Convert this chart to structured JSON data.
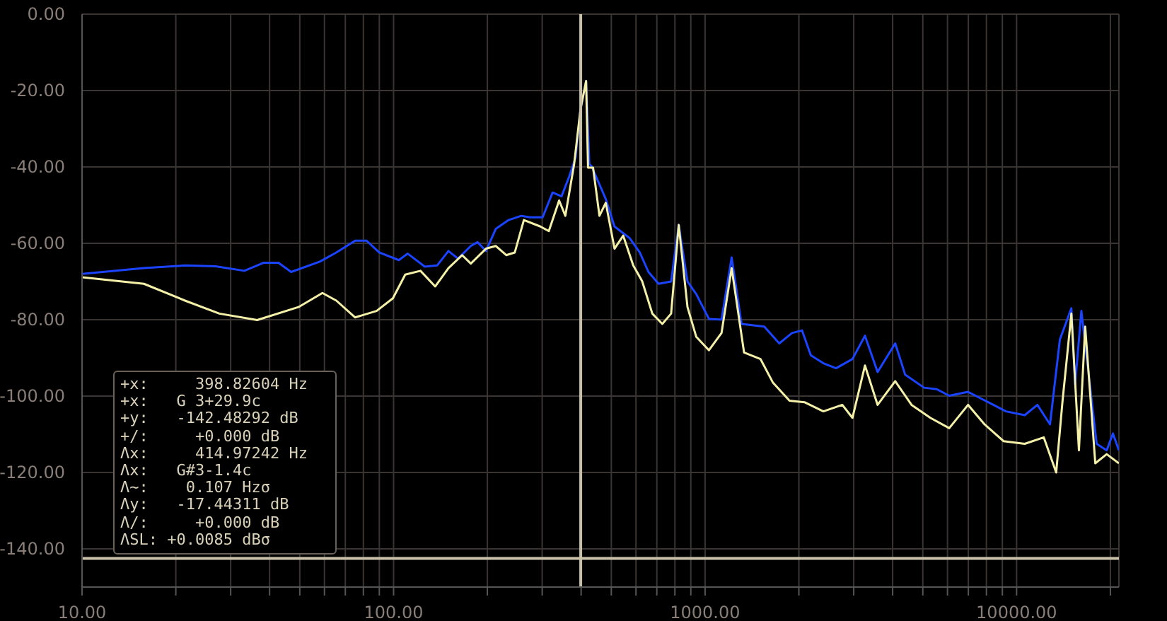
{
  "chart_data": {
    "type": "line",
    "log": "x",
    "grid": true,
    "xlim": [
      10,
      21300
    ],
    "xticks": [
      {
        "value": 10,
        "label": "10.00"
      },
      {
        "value": 20,
        "label": null
      },
      {
        "value": 30,
        "label": null
      },
      {
        "value": 40,
        "label": null
      },
      {
        "value": 50,
        "label": null
      },
      {
        "value": 60,
        "label": null
      },
      {
        "value": 70,
        "label": null
      },
      {
        "value": 80,
        "label": null
      },
      {
        "value": 90,
        "label": null
      },
      {
        "value": 100,
        "label": "100.00"
      },
      {
        "value": 200,
        "label": null
      },
      {
        "value": 300,
        "label": null
      },
      {
        "value": 400,
        "label": null
      },
      {
        "value": 500,
        "label": null
      },
      {
        "value": 600,
        "label": null
      },
      {
        "value": 700,
        "label": null
      },
      {
        "value": 800,
        "label": null
      },
      {
        "value": 900,
        "label": null
      },
      {
        "value": 1000,
        "label": "1000.00"
      },
      {
        "value": 2000,
        "label": null
      },
      {
        "value": 3000,
        "label": null
      },
      {
        "value": 4000,
        "label": null
      },
      {
        "value": 5000,
        "label": null
      },
      {
        "value": 6000,
        "label": null
      },
      {
        "value": 7000,
        "label": null
      },
      {
        "value": 8000,
        "label": null
      },
      {
        "value": 9000,
        "label": null
      },
      {
        "value": 10000,
        "label": "10000.00"
      },
      {
        "value": 20000,
        "label": null
      }
    ],
    "ylim": [
      -150,
      0
    ],
    "yticks": [
      {
        "value": 0,
        "label": "0.00"
      },
      {
        "value": -20,
        "label": "-20.00"
      },
      {
        "value": -40,
        "label": "-40.00"
      },
      {
        "value": -60,
        "label": "-60.00"
      },
      {
        "value": -80,
        "label": "-80.00"
      },
      {
        "value": -100,
        "label": "-100.00"
      },
      {
        "value": -120,
        "label": "-120.00"
      },
      {
        "value": -140,
        "label": "-140.00"
      }
    ],
    "series": [
      {
        "color": "#1a44ff",
        "x": [
          10,
          15.8,
          21.4,
          26.8,
          33.2,
          38.2,
          42.7,
          46.9,
          58,
          65.5,
          75.3,
          81.9,
          89.9,
          104,
          111,
          126,
          138,
          150,
          161,
          177,
          186,
          198,
          213,
          234,
          257,
          274,
          301,
          324,
          346,
          366,
          384,
          398,
          415,
          425,
          432,
          480,
          512,
          572,
          617,
          658,
          709,
          778,
          823,
          878,
          937,
          1029,
          1129,
          1217,
          1309,
          1549,
          1730,
          1901,
          2047,
          2184,
          2397,
          2633,
          2972,
          3260,
          3579,
          4077,
          4388,
          5047,
          5539,
          6077,
          6987,
          7670,
          8420,
          9247,
          10620,
          11660,
          12800,
          13770,
          14990,
          15410,
          16140,
          16910,
          18070,
          19460,
          20380,
          21300
        ],
        "values": [
          -68,
          -66.5,
          -65.8,
          -66,
          -67.2,
          -65.1,
          -65.1,
          -67.5,
          -64.8,
          -62.4,
          -59.3,
          -59.3,
          -62.4,
          -64.4,
          -62.7,
          -66.1,
          -65.8,
          -62,
          -64,
          -60.7,
          -59.7,
          -62,
          -56.2,
          -53.9,
          -52.8,
          -53.2,
          -53.2,
          -46.7,
          -47.7,
          -42.6,
          -37.5,
          -25,
          -17.5,
          -39.2,
          -39.8,
          -48.4,
          -55.6,
          -58.6,
          -62.4,
          -67.5,
          -70.6,
          -70,
          -55.2,
          -70,
          -73.3,
          -79.8,
          -80,
          -63.7,
          -81.1,
          -81.8,
          -86.2,
          -83.5,
          -82.8,
          -89.3,
          -91.4,
          -92.7,
          -90.3,
          -84.2,
          -93.7,
          -86.2,
          -94.4,
          -97.8,
          -98.2,
          -99.9,
          -98.9,
          -100.6,
          -102.3,
          -104,
          -105,
          -102.3,
          -107.4,
          -85.2,
          -77,
          -97,
          -77.7,
          -92,
          -112.5,
          -114.2,
          -109.8,
          -114.2
        ]
      },
      {
        "color": "#f4f0a8",
        "x": [
          10,
          15.8,
          21.4,
          27.6,
          36.5,
          49.5,
          59.1,
          65.5,
          75.3,
          88.2,
          99.5,
          109,
          122,
          136,
          150,
          166,
          177,
          198,
          213,
          230,
          245,
          262,
          296,
          315,
          340,
          356,
          380,
          398,
          415,
          421,
          437,
          458,
          480,
          512,
          546,
          588,
          628,
          677,
          729,
          778,
          823,
          878,
          937,
          1029,
          1129,
          1217,
          1334,
          1506,
          1652,
          1866,
          2085,
          2397,
          2757,
          2972,
          3260,
          3579,
          4077,
          4600,
          5286,
          6077,
          6987,
          7890,
          9074,
          10620,
          12220,
          13400,
          14030,
          14990,
          15850,
          16600,
          17890,
          19460,
          21300
        ],
        "values": [
          -68.9,
          -70.6,
          -75,
          -78.4,
          -80.1,
          -76.7,
          -73,
          -75,
          -79.4,
          -77.7,
          -74.4,
          -68.2,
          -67.2,
          -71.3,
          -66.5,
          -63.1,
          -65.3,
          -61.4,
          -60.7,
          -63.1,
          -62.4,
          -53.9,
          -55.6,
          -56.8,
          -48.8,
          -52.8,
          -39.2,
          -25,
          -17.5,
          -40.2,
          -40.2,
          -52.8,
          -49.4,
          -61.4,
          -58,
          -65.8,
          -69.9,
          -78.4,
          -81.1,
          -78.4,
          -55.2,
          -76.7,
          -84.5,
          -88,
          -83.5,
          -66.5,
          -88.6,
          -90.3,
          -96.5,
          -101.2,
          -101.6,
          -104,
          -102.3,
          -105.7,
          -92,
          -102.3,
          -96.1,
          -102.3,
          -105.7,
          -108.4,
          -102.3,
          -107.4,
          -111.8,
          -112.5,
          -110.8,
          -120,
          -101.6,
          -78.4,
          -114.2,
          -81.8,
          -117.6,
          -115.2,
          -117.6
        ]
      }
    ],
    "ref_lines": [
      {
        "axis": "x",
        "value": 398.82604,
        "color": "#c8c0a8"
      },
      {
        "axis": "y",
        "value": -142.48292,
        "color": "#c8c0a8"
      }
    ],
    "annotations": [
      "+x:     398.82604 Hz",
      "+x:   G 3+29.9c",
      "+y:   -142.48292 dB",
      "+/:     +0.000 dB",
      "Λx:     414.97242 Hz",
      "Λx:   G#3-1.4c",
      "Λ~:    0.107 Hzσ",
      "Λy:   -17.44311 dB",
      "Λ/:     +0.000 dB",
      "ΛSL: +0.0085 dBσ"
    ]
  }
}
